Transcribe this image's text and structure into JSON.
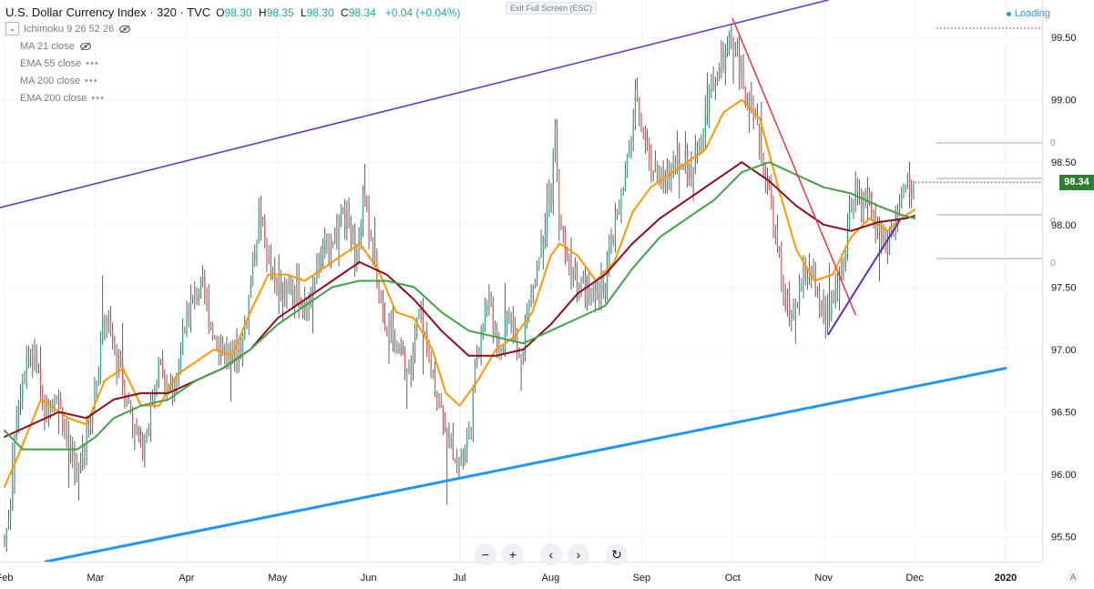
{
  "legend": {
    "symbol": "U.S. Dollar Currency Index · 320 · TVC",
    "ohlc": [
      {
        "k": "O",
        "v": "98.30"
      },
      {
        "k": "H",
        "v": "98.35"
      },
      {
        "k": "L",
        "v": "98.30"
      },
      {
        "k": "C",
        "v": "98.34"
      }
    ],
    "change": "+0.04 (+0.04%)",
    "indicators": [
      "Ichimoku 9 26 52 26",
      "MA 21 close",
      "EMA 55 close",
      "MA 200 close",
      "EMA 200 close"
    ]
  },
  "exit_fullscreen": "Exit Full Screen (ESC)",
  "loading": "Loading",
  "price_label": "98.34",
  "nav": {
    "zoom_out": "−",
    "zoom_in": "+",
    "back": "‹",
    "forward": "›",
    "reset": "↻"
  },
  "axis_corner": "A",
  "colors": {
    "up": "#26a69a",
    "down": "#ef5350",
    "ma21": "#ff9800",
    "ema55": "#880e1f",
    "ma200": "#43a047",
    "channel_top": "#673ab7",
    "channel_bottom": "#2196f3",
    "trend_down": "#e53935",
    "trend_up": "#5e35b1",
    "last_price": "#2e7d32"
  },
  "chart_data": {
    "type": "candlestick",
    "y_ticks": [
      "99.50",
      "99.00",
      "98.50",
      "98.00",
      "97.50",
      "97.00",
      "96.50",
      "96.00",
      "95.50"
    ],
    "ylim": [
      95.3,
      99.8
    ],
    "x_ticks": [
      "Feb",
      "Mar",
      "Apr",
      "May",
      "Jun",
      "Jul",
      "Aug",
      "Sep",
      "Oct",
      "Nov",
      "Dec",
      "2020"
    ],
    "xlim": [
      -0.05,
      11.4
    ],
    "last_price": 98.34,
    "right_axis_partial_labels": [
      "0",
      "0",
      "0"
    ],
    "price_path": [
      [
        0.0,
        95.45
      ],
      [
        0.07,
        95.8
      ],
      [
        0.15,
        96.6
      ],
      [
        0.25,
        97.0
      ],
      [
        0.35,
        96.9
      ],
      [
        0.45,
        96.5
      ],
      [
        0.55,
        96.7
      ],
      [
        0.65,
        96.4
      ],
      [
        0.8,
        96.0
      ],
      [
        0.9,
        96.3
      ],
      [
        1.0,
        96.7
      ],
      [
        1.1,
        97.3
      ],
      [
        1.2,
        97.0
      ],
      [
        1.35,
        96.6
      ],
      [
        1.5,
        96.2
      ],
      [
        1.6,
        96.5
      ],
      [
        1.7,
        96.9
      ],
      [
        1.8,
        96.6
      ],
      [
        1.9,
        96.8
      ],
      [
        2.0,
        97.3
      ],
      [
        2.15,
        97.5
      ],
      [
        2.3,
        97.15
      ],
      [
        2.45,
        96.95
      ],
      [
        2.6,
        97.0
      ],
      [
        2.7,
        97.5
      ],
      [
        2.8,
        98.1
      ],
      [
        2.9,
        97.7
      ],
      [
        3.0,
        97.4
      ],
      [
        3.15,
        97.6
      ],
      [
        3.3,
        97.3
      ],
      [
        3.45,
        97.7
      ],
      [
        3.6,
        97.9
      ],
      [
        3.75,
        98.05
      ],
      [
        3.85,
        97.8
      ],
      [
        3.95,
        98.2
      ],
      [
        4.05,
        97.7
      ],
      [
        4.15,
        97.3
      ],
      [
        4.3,
        97.0
      ],
      [
        4.45,
        96.8
      ],
      [
        4.55,
        97.3
      ],
      [
        4.65,
        96.9
      ],
      [
        4.75,
        96.7
      ],
      [
        4.85,
        96.3
      ],
      [
        5.0,
        96.1
      ],
      [
        5.1,
        96.3
      ],
      [
        5.2,
        97.0
      ],
      [
        5.3,
        97.4
      ],
      [
        5.45,
        97.0
      ],
      [
        5.55,
        97.3
      ],
      [
        5.65,
        96.9
      ],
      [
        5.8,
        97.5
      ],
      [
        5.9,
        97.9
      ],
      [
        6.0,
        98.2
      ],
      [
        6.05,
        98.7
      ],
      [
        6.1,
        98.0
      ],
      [
        6.2,
        97.7
      ],
      [
        6.35,
        97.5
      ],
      [
        6.5,
        97.35
      ],
      [
        6.6,
        97.6
      ],
      [
        6.75,
        98.1
      ],
      [
        6.85,
        98.5
      ],
      [
        6.95,
        99.1
      ],
      [
        7.0,
        98.8
      ],
      [
        7.1,
        98.5
      ],
      [
        7.25,
        98.3
      ],
      [
        7.4,
        98.6
      ],
      [
        7.55,
        98.4
      ],
      [
        7.65,
        98.7
      ],
      [
        7.75,
        99.1
      ],
      [
        7.9,
        99.3
      ],
      [
        8.0,
        99.5
      ],
      [
        8.08,
        99.2
      ],
      [
        8.2,
        98.9
      ],
      [
        8.35,
        98.5
      ],
      [
        8.45,
        98.0
      ],
      [
        8.55,
        97.5
      ],
      [
        8.65,
        97.2
      ],
      [
        8.75,
        97.5
      ],
      [
        8.85,
        97.7
      ],
      [
        8.95,
        97.3
      ],
      [
        9.05,
        97.25
      ],
      [
        9.15,
        97.5
      ],
      [
        9.25,
        97.9
      ],
      [
        9.35,
        98.25
      ],
      [
        9.5,
        98.2
      ],
      [
        9.6,
        97.95
      ],
      [
        9.7,
        97.85
      ],
      [
        9.8,
        98.05
      ],
      [
        9.9,
        98.3
      ],
      [
        10.0,
        98.34
      ]
    ],
    "series": [
      {
        "name": "MA 21 close",
        "points": [
          [
            0.0,
            95.9
          ],
          [
            0.15,
            96.15
          ],
          [
            0.4,
            96.6
          ],
          [
            0.7,
            96.45
          ],
          [
            0.9,
            96.4
          ],
          [
            1.1,
            96.75
          ],
          [
            1.3,
            96.85
          ],
          [
            1.5,
            96.55
          ],
          [
            1.7,
            96.55
          ],
          [
            1.9,
            96.8
          ],
          [
            2.1,
            96.9
          ],
          [
            2.3,
            97.0
          ],
          [
            2.5,
            96.95
          ],
          [
            2.7,
            97.3
          ],
          [
            2.9,
            97.6
          ],
          [
            3.1,
            97.6
          ],
          [
            3.3,
            97.55
          ],
          [
            3.5,
            97.65
          ],
          [
            3.7,
            97.75
          ],
          [
            3.9,
            97.85
          ],
          [
            4.1,
            97.65
          ],
          [
            4.3,
            97.3
          ],
          [
            4.5,
            97.25
          ],
          [
            4.7,
            97.0
          ],
          [
            4.85,
            96.65
          ],
          [
            5.0,
            96.55
          ],
          [
            5.2,
            96.75
          ],
          [
            5.4,
            97.0
          ],
          [
            5.6,
            97.1
          ],
          [
            5.8,
            97.3
          ],
          [
            6.0,
            97.75
          ],
          [
            6.1,
            97.85
          ],
          [
            6.3,
            97.75
          ],
          [
            6.5,
            97.55
          ],
          [
            6.7,
            97.7
          ],
          [
            6.9,
            98.1
          ],
          [
            7.1,
            98.3
          ],
          [
            7.3,
            98.4
          ],
          [
            7.5,
            98.5
          ],
          [
            7.7,
            98.6
          ],
          [
            7.9,
            98.9
          ],
          [
            8.1,
            99.0
          ],
          [
            8.3,
            98.85
          ],
          [
            8.5,
            98.3
          ],
          [
            8.7,
            97.8
          ],
          [
            8.9,
            97.55
          ],
          [
            9.1,
            97.6
          ],
          [
            9.3,
            97.9
          ],
          [
            9.5,
            98.05
          ],
          [
            9.7,
            97.95
          ],
          [
            9.85,
            98.05
          ],
          [
            10.0,
            98.12
          ]
        ]
      },
      {
        "name": "EMA 55 close",
        "points": [
          [
            0.0,
            96.3
          ],
          [
            0.3,
            96.4
          ],
          [
            0.6,
            96.5
          ],
          [
            0.9,
            96.45
          ],
          [
            1.2,
            96.6
          ],
          [
            1.5,
            96.65
          ],
          [
            1.8,
            96.65
          ],
          [
            2.1,
            96.75
          ],
          [
            2.4,
            96.85
          ],
          [
            2.7,
            97.0
          ],
          [
            3.0,
            97.25
          ],
          [
            3.3,
            97.4
          ],
          [
            3.6,
            97.55
          ],
          [
            3.9,
            97.7
          ],
          [
            4.2,
            97.6
          ],
          [
            4.5,
            97.4
          ],
          [
            4.8,
            97.15
          ],
          [
            5.1,
            96.95
          ],
          [
            5.4,
            96.95
          ],
          [
            5.7,
            97.0
          ],
          [
            6.0,
            97.2
          ],
          [
            6.3,
            97.45
          ],
          [
            6.6,
            97.6
          ],
          [
            6.9,
            97.85
          ],
          [
            7.2,
            98.05
          ],
          [
            7.5,
            98.2
          ],
          [
            7.8,
            98.35
          ],
          [
            8.1,
            98.5
          ],
          [
            8.4,
            98.35
          ],
          [
            8.7,
            98.15
          ],
          [
            9.0,
            98.0
          ],
          [
            9.3,
            97.95
          ],
          [
            9.6,
            98.02
          ],
          [
            9.9,
            98.05
          ],
          [
            10.0,
            98.07
          ]
        ]
      },
      {
        "name": "MA 200 close",
        "points": [
          [
            0.0,
            96.35
          ],
          [
            0.2,
            96.2
          ],
          [
            0.5,
            96.2
          ],
          [
            0.8,
            96.2
          ],
          [
            1.0,
            96.3
          ],
          [
            1.2,
            96.45
          ],
          [
            1.5,
            96.55
          ],
          [
            1.8,
            96.6
          ],
          [
            2.1,
            96.75
          ],
          [
            2.4,
            96.85
          ],
          [
            2.7,
            97.0
          ],
          [
            3.0,
            97.2
          ],
          [
            3.3,
            97.35
          ],
          [
            3.6,
            97.5
          ],
          [
            3.9,
            97.55
          ],
          [
            4.2,
            97.55
          ],
          [
            4.5,
            97.5
          ],
          [
            4.8,
            97.3
          ],
          [
            5.1,
            97.15
          ],
          [
            5.4,
            97.1
          ],
          [
            5.7,
            97.05
          ],
          [
            6.0,
            97.15
          ],
          [
            6.3,
            97.25
          ],
          [
            6.6,
            97.35
          ],
          [
            6.9,
            97.65
          ],
          [
            7.2,
            97.9
          ],
          [
            7.5,
            98.05
          ],
          [
            7.8,
            98.2
          ],
          [
            8.1,
            98.42
          ],
          [
            8.4,
            98.5
          ],
          [
            8.7,
            98.4
          ],
          [
            9.0,
            98.3
          ],
          [
            9.3,
            98.25
          ],
          [
            9.6,
            98.15
          ],
          [
            9.85,
            98.08
          ],
          [
            10.0,
            98.05
          ]
        ]
      }
    ],
    "drawings": [
      {
        "name": "channel-top",
        "p1": [
          -0.25,
          98.1
        ],
        "p2": [
          9.05,
          99.8
        ]
      },
      {
        "name": "channel-bottom",
        "p1": [
          0.45,
          95.3
        ],
        "p2": [
          11.0,
          96.85
        ]
      },
      {
        "name": "trend-down",
        "p1": [
          8.0,
          99.65
        ],
        "p2": [
          9.35,
          97.28
        ]
      },
      {
        "name": "trend-up",
        "p1": [
          9.05,
          97.12
        ],
        "p2": [
          9.85,
          98.05
        ]
      }
    ]
  }
}
